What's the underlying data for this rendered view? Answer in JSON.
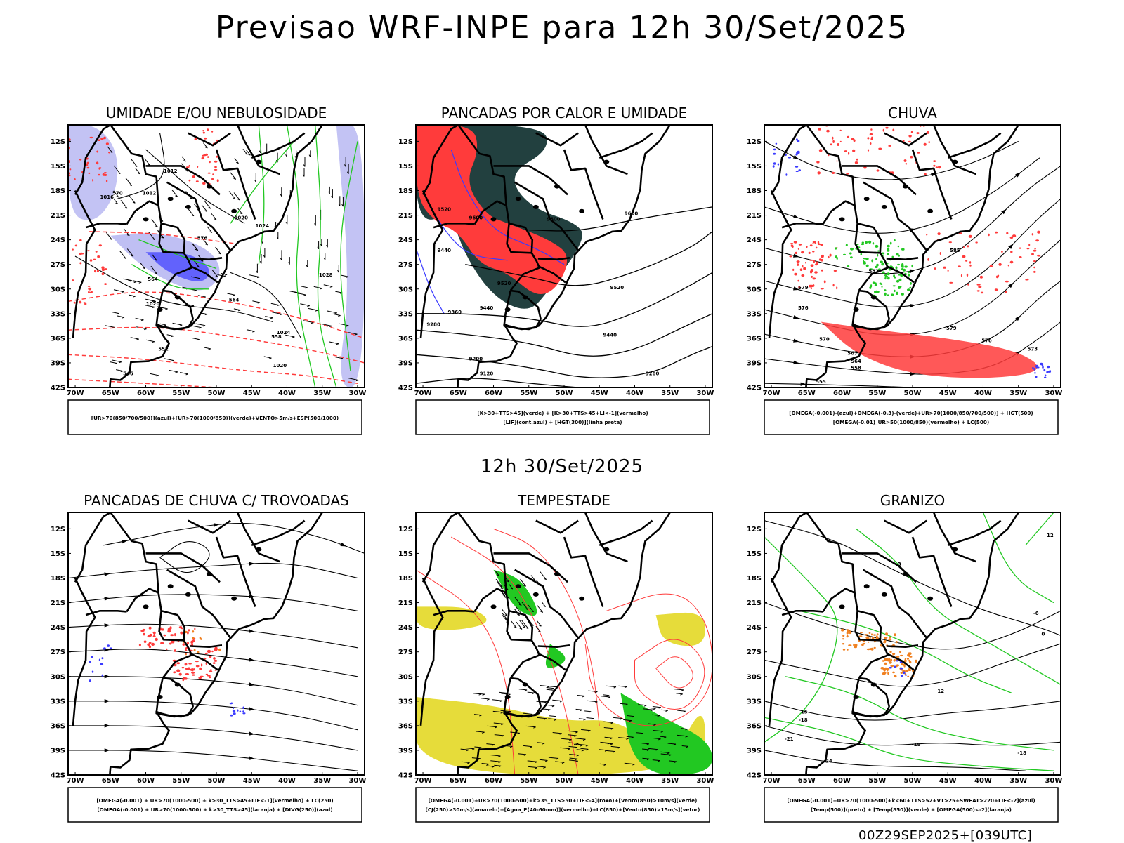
{
  "title": "Previsao WRF-INPE  para 12h 30/Set/2025",
  "row2_title": "12h 30/Set/2025",
  "footer": "00Z29SEP2025+[039UTC]",
  "colors": {
    "frame": "#000000",
    "blue": "#3b3bff",
    "light_blue": "#b8b8f2",
    "green": "#22c822",
    "red": "#ff3b3b",
    "dark_teal": "#22403f",
    "yellow": "#e6dc3a",
    "orange": "#f08020",
    "purple": "#a020d0"
  },
  "chart_data": [
    {
      "type": "map",
      "title": "UMIDADE E/OU NEBULOSIDADE",
      "legend": [
        "[UR>70(850/700/500)](azul)+[UR>70(1000/850)](verde)+VENTO>5m/s+ESP(500/1000)"
      ],
      "x_ticks": [
        "70W",
        "65W",
        "60W",
        "55W",
        "50W",
        "45W",
        "40W",
        "35W",
        "30W"
      ],
      "y_ticks": [
        "12S",
        "15S",
        "18S",
        "21S",
        "24S",
        "27S",
        "30S",
        "33S",
        "36S",
        "39S",
        "42S"
      ],
      "contour_labels": [
        {
          "text": "1012",
          "lon": -59.5,
          "lat": -18.5
        },
        {
          "text": "1012",
          "lon": -56.5,
          "lat": -15.8
        },
        {
          "text": "1016",
          "lon": -65.5,
          "lat": -19.0
        },
        {
          "text": "1020",
          "lon": -46.5,
          "lat": -21.5
        },
        {
          "text": "1024",
          "lon": -43.5,
          "lat": -22.5
        },
        {
          "text": "1028",
          "lon": -34.5,
          "lat": -28.5
        },
        {
          "text": "1020",
          "lon": -59.0,
          "lat": -32.0
        },
        {
          "text": "1024",
          "lon": -40.5,
          "lat": -35.5
        },
        {
          "text": "1020",
          "lon": -41.0,
          "lat": -39.5
        },
        {
          "text": "570",
          "lon": -64.0,
          "lat": -18.5
        },
        {
          "text": "576",
          "lon": -52.0,
          "lat": -24.0
        },
        {
          "text": "564",
          "lon": -59.0,
          "lat": -29.0
        },
        {
          "text": "564",
          "lon": -47.5,
          "lat": -31.5
        },
        {
          "text": "558",
          "lon": -41.5,
          "lat": -36.0
        },
        {
          "text": "552",
          "lon": -57.5,
          "lat": -37.5
        },
        {
          "text": "546",
          "lon": -62.5,
          "lat": -40.5
        }
      ]
    },
    {
      "type": "map",
      "title": "PANCADAS POR CALOR E UMIDADE",
      "legend": [
        "[K>30+TTS>45](verde) + [K>30+TTS>45+LI<-1](vermelho)",
        "[LIF](cont.azul) + [HGT(300)](linha preta)"
      ],
      "x_ticks": [
        "70W",
        "65W",
        "60W",
        "55W",
        "50W",
        "45W",
        "40W",
        "35W",
        "30W"
      ],
      "y_ticks": [
        "12S",
        "15S",
        "18S",
        "21S",
        "24S",
        "27S",
        "30S",
        "33S",
        "36S",
        "39S",
        "42S"
      ],
      "contour_labels": [
        {
          "text": "9600",
          "lon": -40.5,
          "lat": -21.0
        },
        {
          "text": "9600",
          "lon": -62.5,
          "lat": -21.5
        },
        {
          "text": "9600",
          "lon": -51.5,
          "lat": -21.7
        },
        {
          "text": "9520",
          "lon": -67.0,
          "lat": -20.5
        },
        {
          "text": "9520",
          "lon": -58.5,
          "lat": -29.5
        },
        {
          "text": "9520",
          "lon": -42.5,
          "lat": -30.0
        },
        {
          "text": "9440",
          "lon": -67.0,
          "lat": -25.5
        },
        {
          "text": "9440",
          "lon": -61.0,
          "lat": -32.5
        },
        {
          "text": "9440",
          "lon": -43.5,
          "lat": -35.8
        },
        {
          "text": "9360",
          "lon": -65.5,
          "lat": -33.0
        },
        {
          "text": "9280",
          "lon": -68.5,
          "lat": -34.5
        },
        {
          "text": "9280",
          "lon": -37.5,
          "lat": -40.5
        },
        {
          "text": "9200",
          "lon": -62.5,
          "lat": -38.7
        },
        {
          "text": "9120",
          "lon": -61.0,
          "lat": -40.5
        }
      ]
    },
    {
      "type": "map",
      "title": "CHUVA",
      "legend": [
        "[OMEGA(-0.001)-(azul)+OMEGA(-0.3)-(verde)+UR>70(1000/850/700/500)] + HGT(500)",
        "[OMEGA(-0.01)_UR>50(1000/850)(vermelho) + LC(500)"
      ],
      "x_ticks": [
        "70W",
        "65W",
        "60W",
        "55W",
        "50W",
        "45W",
        "40W",
        "35W",
        "30W"
      ],
      "y_ticks": [
        "12S",
        "15S",
        "18S",
        "21S",
        "24S",
        "27S",
        "30S",
        "33S",
        "36S",
        "39S",
        "42S"
      ],
      "contour_labels": [
        {
          "text": "585",
          "lon": -44.0,
          "lat": -25.5
        },
        {
          "text": "582",
          "lon": -55.5,
          "lat": -28.0
        },
        {
          "text": "579",
          "lon": -65.5,
          "lat": -30.0
        },
        {
          "text": "576",
          "lon": -65.5,
          "lat": -32.5
        },
        {
          "text": "579",
          "lon": -44.5,
          "lat": -35.0
        },
        {
          "text": "576",
          "lon": -39.5,
          "lat": -36.5
        },
        {
          "text": "573",
          "lon": -33.0,
          "lat": -37.5
        },
        {
          "text": "570",
          "lon": -62.5,
          "lat": -36.3
        },
        {
          "text": "567",
          "lon": -58.5,
          "lat": -38.0
        },
        {
          "text": "564",
          "lon": -58.0,
          "lat": -39.0
        },
        {
          "text": "558",
          "lon": -58.0,
          "lat": -39.8
        },
        {
          "text": "555",
          "lon": -63.0,
          "lat": -41.5
        }
      ]
    },
    {
      "type": "map",
      "title": "PANCADAS DE CHUVA C/ TROVOADAS",
      "legend": [
        "[OMEGA(-0.001) + UR>70(1000-500) + k>30_TTS>45+LIF<-1](vermelho) + LC(250)",
        "[OMEGA(-0.001) + UR>70(1000-500) + k>30_TTS>45](laranja) + [DIVG(250)](azul)"
      ],
      "x_ticks": [
        "70W",
        "65W",
        "60W",
        "55W",
        "50W",
        "45W",
        "40W",
        "35W",
        "30W"
      ],
      "y_ticks": [
        "12S",
        "15S",
        "18S",
        "21S",
        "24S",
        "27S",
        "30S",
        "33S",
        "36S",
        "39S",
        "42S"
      ],
      "contour_labels": []
    },
    {
      "type": "map",
      "title": "TEMPESTADE",
      "legend": [
        "[OMEGA(-0.001)+UR>70(1000-500)+k>35_TTS>50+LIF<-4](roxo)+[Vento(850)>10m/s](verde)",
        "[CJ(250)>30m/s](amarelo)+[Agua_P(40-60mm)](vermelho)+LC(850)+[Vento(850)>15m/s](vetor)"
      ],
      "x_ticks": [
        "70W",
        "65W",
        "60W",
        "55W",
        "50W",
        "45W",
        "40W",
        "35W",
        "30W"
      ],
      "y_ticks": [
        "12S",
        "15S",
        "18S",
        "21S",
        "24S",
        "27S",
        "30S",
        "33S",
        "36S",
        "39S",
        "42S"
      ],
      "contour_labels": []
    },
    {
      "type": "map",
      "title": "GRANIZO",
      "legend": [
        "[OMEGA(-0.001)+UR>70(1000-500)+k<60+TTS>52+VT>25+SWEAT>220+LIF<-2](azul)",
        "[Temp(500)](preto) + [Temp(850)](verde) + [OMEGA(500)<-2](laranja)"
      ],
      "x_ticks": [
        "70W",
        "65W",
        "60W",
        "55W",
        "50W",
        "45W",
        "40W",
        "35W",
        "30W"
      ],
      "y_ticks": [
        "12S",
        "15S",
        "18S",
        "21S",
        "24S",
        "27S",
        "30S",
        "33S",
        "36S",
        "39S",
        "42S"
      ],
      "contour_labels": [
        {
          "text": "12",
          "lon": -30.5,
          "lat": -13.0
        },
        {
          "text": "-3",
          "lon": -52.0,
          "lat": -16.5
        },
        {
          "text": "-6",
          "lon": -32.5,
          "lat": -22.5
        },
        {
          "text": "12",
          "lon": -46.0,
          "lat": -32.0
        },
        {
          "text": "-15",
          "lon": -65.5,
          "lat": -34.5
        },
        {
          "text": "-18",
          "lon": -65.5,
          "lat": -35.5
        },
        {
          "text": "-21",
          "lon": -67.5,
          "lat": -37.8
        },
        {
          "text": "-24",
          "lon": -62.0,
          "lat": -40.5
        },
        {
          "text": "-18",
          "lon": -49.5,
          "lat": -38.5
        },
        {
          "text": "-18",
          "lon": -34.5,
          "lat": -39.5
        },
        {
          "text": "0",
          "lon": -31.5,
          "lat": -25.0
        }
      ]
    }
  ]
}
